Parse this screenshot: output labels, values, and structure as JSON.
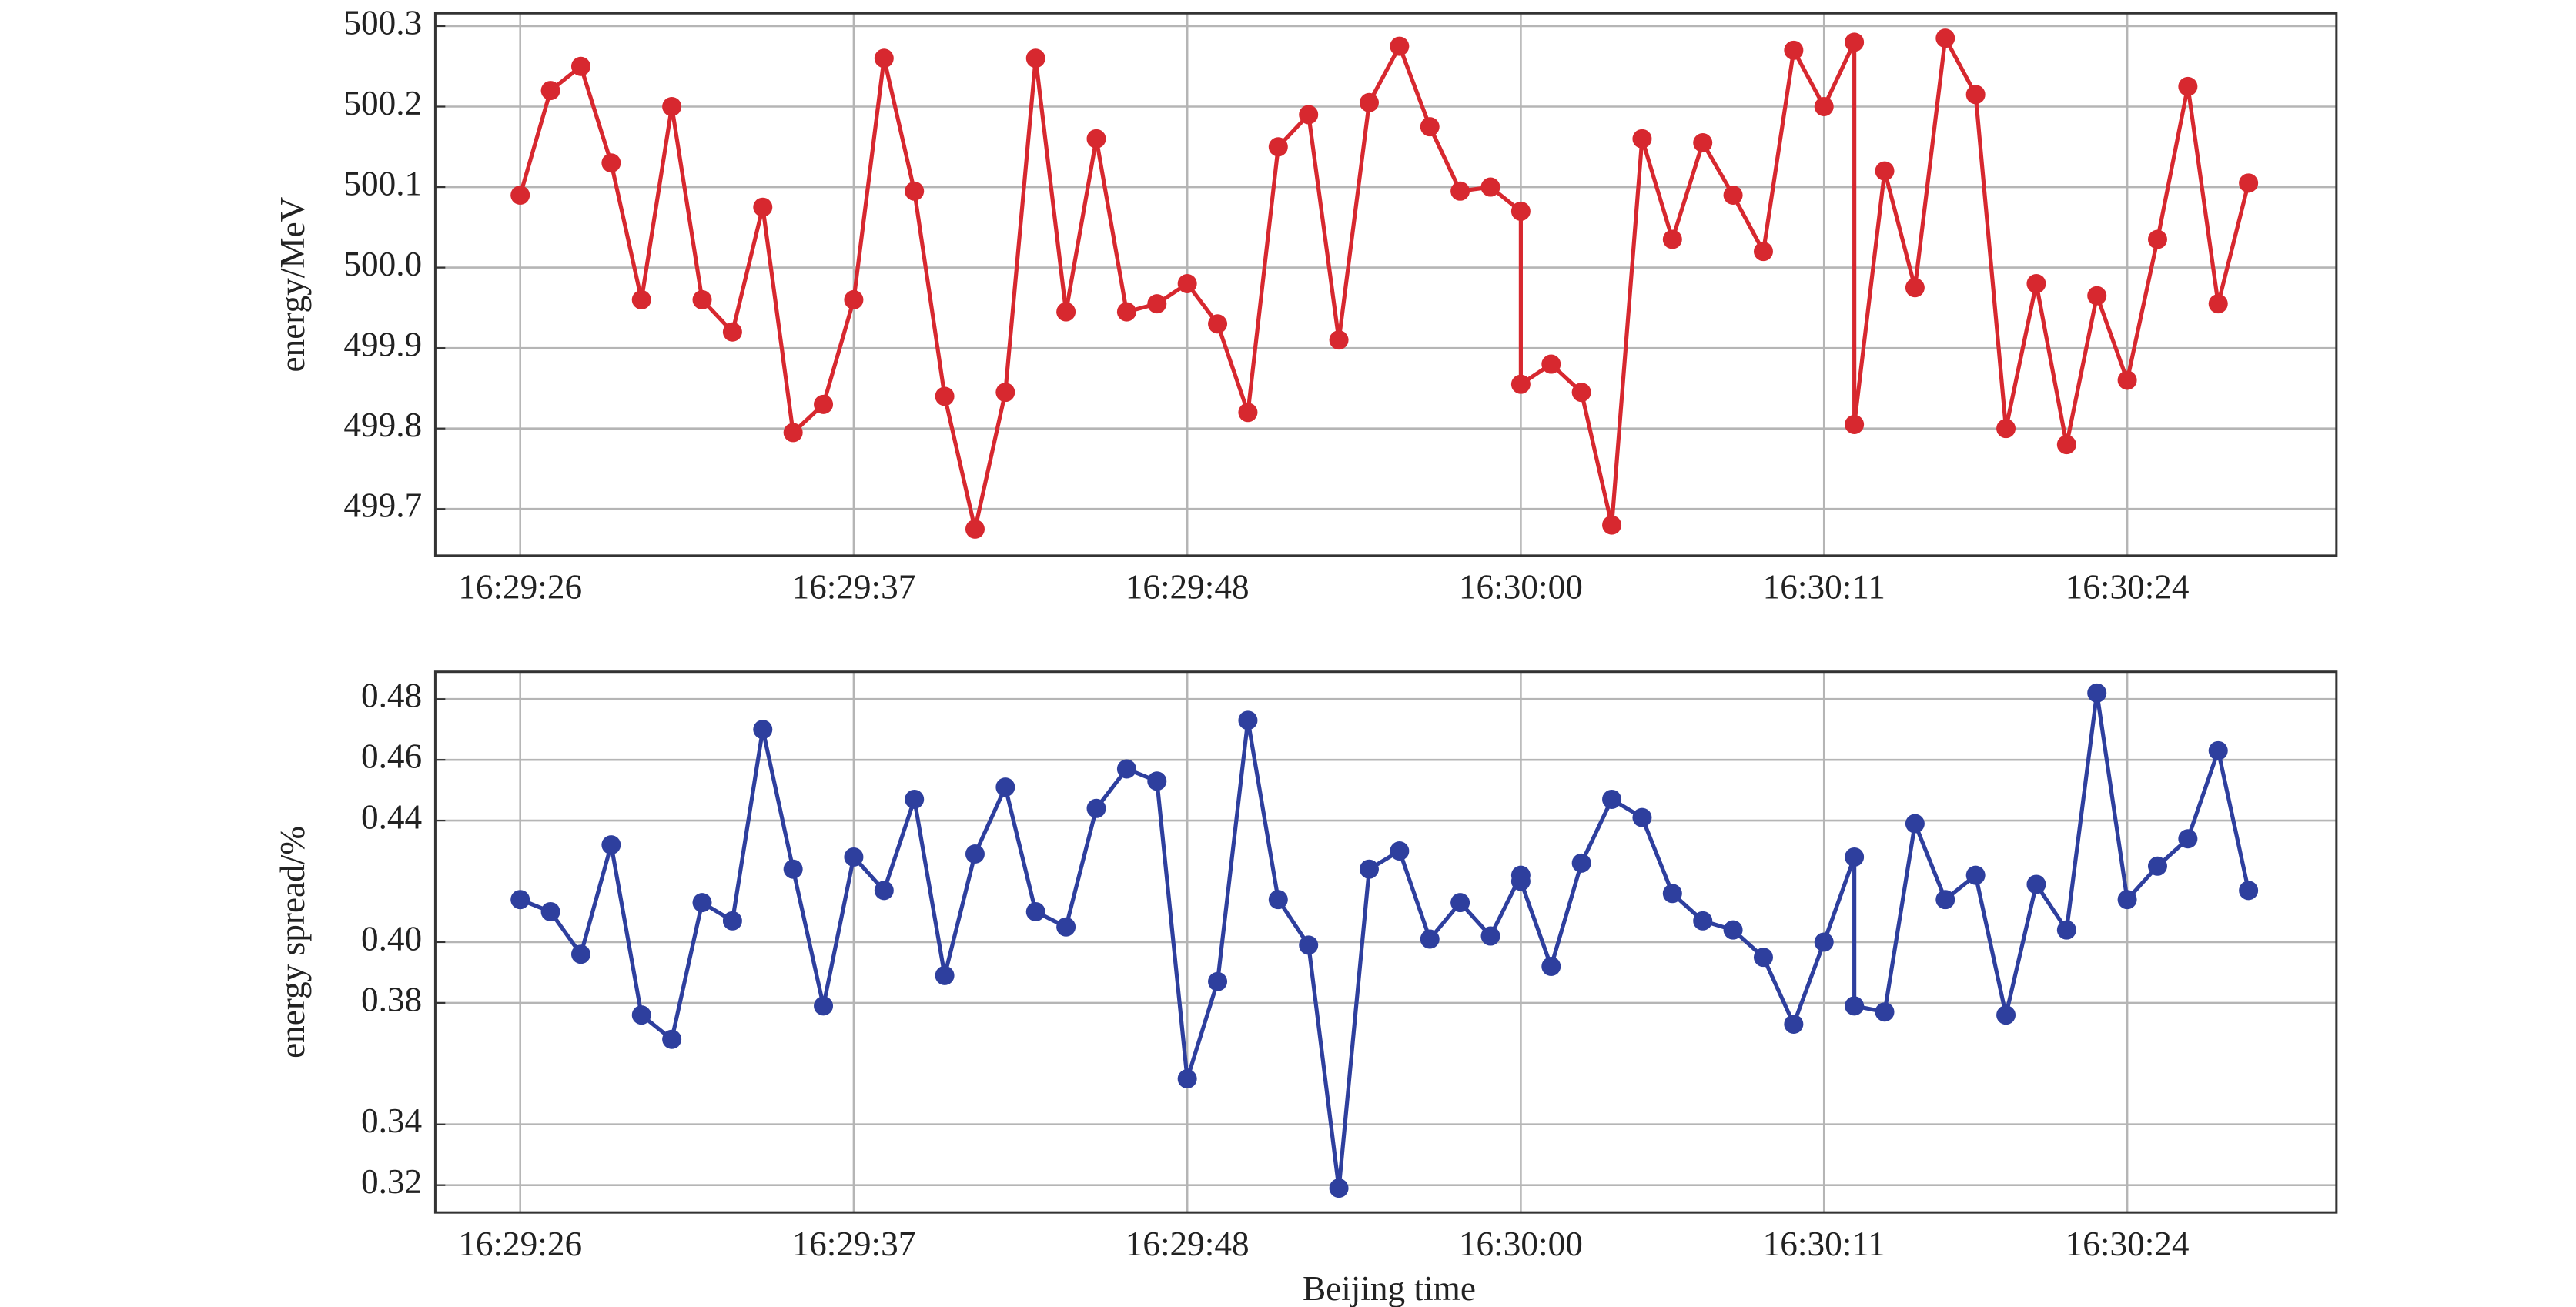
{
  "chart_data": [
    {
      "type": "line",
      "ylabel": "energy/MeV",
      "x": [
        0,
        1,
        2,
        3,
        4,
        5,
        6,
        7,
        8,
        9,
        10,
        11,
        12,
        13,
        14,
        15,
        16,
        17,
        18,
        19,
        20,
        21,
        22,
        23,
        24,
        25,
        26,
        27,
        28,
        29,
        30,
        31,
        32,
        33,
        33,
        34,
        35,
        36,
        37,
        38,
        39,
        40,
        41,
        42,
        43,
        44,
        44,
        45,
        46,
        47,
        48,
        49,
        50,
        51,
        52,
        53,
        54,
        55,
        56,
        57
      ],
      "series": [
        {
          "color": "#d7282f",
          "values": [
            500.09,
            500.22,
            500.25,
            500.13,
            499.96,
            500.2,
            499.96,
            499.92,
            500.075,
            499.795,
            499.83,
            499.96,
            500.26,
            500.095,
            499.84,
            499.675,
            499.845,
            500.26,
            499.945,
            500.16,
            499.945,
            499.955,
            499.98,
            499.93,
            499.82,
            500.15,
            500.19,
            499.91,
            500.205,
            500.275,
            500.175,
            500.095,
            500.1,
            500.07,
            499.855,
            499.88,
            499.845,
            499.68,
            500.16,
            500.035,
            500.155,
            500.09,
            500.02,
            500.27,
            500.2,
            500.28,
            499.805,
            500.12,
            499.975,
            500.285,
            500.215,
            499.8,
            499.98,
            499.78,
            499.965,
            499.86,
            500.035,
            500.225,
            499.955,
            500.105
          ]
        }
      ],
      "xlim": [
        -2.8,
        59.9
      ],
      "xticks": [
        {
          "value": 0,
          "label": "16:29:26"
        },
        {
          "value": 11,
          "label": "16:29:37"
        },
        {
          "value": 22,
          "label": "16:29:48"
        },
        {
          "value": 33,
          "label": "16:30:00"
        },
        {
          "value": 43,
          "label": "16:30:11"
        },
        {
          "value": 53,
          "label": "16:30:24"
        }
      ],
      "ylim": [
        499.642,
        500.316
      ],
      "yticks": [
        499.7,
        499.8,
        499.9,
        {
          "value": 500,
          "label": "500.0"
        },
        500.1,
        500.2,
        500.3
      ],
      "grid": true
    },
    {
      "type": "line",
      "xlabel": "Beijing time",
      "ylabel": "energy spread/%",
      "x": [
        0,
        1,
        2,
        3,
        4,
        5,
        6,
        7,
        8,
        9,
        10,
        11,
        12,
        13,
        14,
        15,
        16,
        17,
        18,
        19,
        20,
        21,
        22,
        23,
        24,
        25,
        26,
        27,
        28,
        29,
        30,
        31,
        32,
        33,
        33,
        34,
        35,
        36,
        37,
        38,
        39,
        40,
        41,
        42,
        43,
        44,
        44,
        45,
        46,
        47,
        48,
        49,
        50,
        51,
        52,
        53,
        54,
        55,
        56,
        57
      ],
      "series": [
        {
          "color": "#2e3f9e",
          "values": [
            0.414,
            0.41,
            0.396,
            0.432,
            0.376,
            0.368,
            0.413,
            0.407,
            0.47,
            0.424,
            0.379,
            0.428,
            0.417,
            0.447,
            0.389,
            0.429,
            0.451,
            0.41,
            0.405,
            0.444,
            0.457,
            0.453,
            0.355,
            0.387,
            0.473,
            0.414,
            0.399,
            0.319,
            0.424,
            0.43,
            0.401,
            0.413,
            0.402,
            0.422,
            0.42,
            0.392,
            0.426,
            0.447,
            0.441,
            0.416,
            0.407,
            0.404,
            0.395,
            0.373,
            0.4,
            0.428,
            0.379,
            0.377,
            0.439,
            0.414,
            0.422,
            0.376,
            0.419,
            0.404,
            0.482,
            0.414,
            0.425,
            0.434,
            0.463,
            0.417
          ]
        }
      ],
      "xlim": [
        -2.8,
        59.9
      ],
      "xticks": [
        {
          "value": 0,
          "label": "16:29:26"
        },
        {
          "value": 11,
          "label": "16:29:37"
        },
        {
          "value": 22,
          "label": "16:29:48"
        },
        {
          "value": 33,
          "label": "16:30:00"
        },
        {
          "value": 43,
          "label": "16:30:11"
        },
        {
          "value": 53,
          "label": "16:30:24"
        }
      ],
      "ylim": [
        0.311,
        0.489
      ],
      "yticks": [
        {
          "value": 0.32,
          "label": "0.32"
        },
        {
          "value": 0.34,
          "label": "0.34"
        },
        {
          "value": 0.38,
          "label": "0.38"
        },
        {
          "value": 0.4,
          "label": "0.40"
        },
        {
          "value": 0.44,
          "label": "0.44"
        },
        {
          "value": 0.46,
          "label": "0.46"
        },
        {
          "value": 0.48,
          "label": "0.48"
        }
      ],
      "grid": true
    }
  ]
}
